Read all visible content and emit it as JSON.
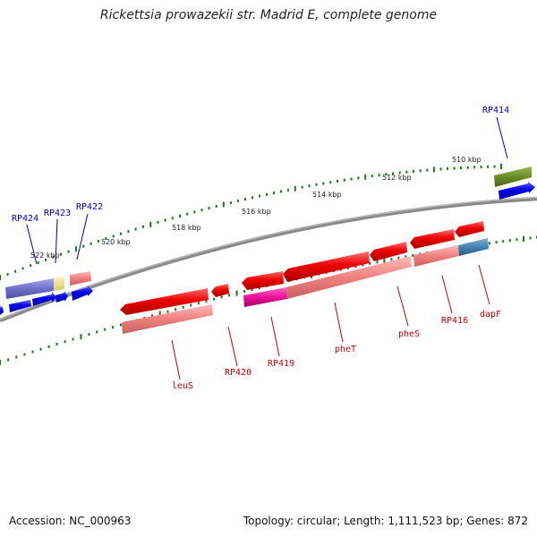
{
  "title": "Rickettsia prowazekii str. Madrid E, complete genome",
  "footer": {
    "accession": "Accession: NC_000963",
    "summary": "Topology: circular; Length: 1,111,523 bp; Genes: 872"
  },
  "colors": {
    "backbone": "#777777",
    "ticks": "#1a7a1a",
    "cds_forward": "#ee1111",
    "cds_reverse": "#0000ee",
    "gene_forward": "#f58a8a",
    "olive": "#6b8e23",
    "steel_blue": "#4682b4",
    "magenta": "#ee1199",
    "purple": "#7070cc",
    "khaki": "#eee08a"
  },
  "scale": {
    "ticks": [
      {
        "label": "522 kbp"
      },
      {
        "label": "520 kbp"
      },
      {
        "label": "518 kbp"
      },
      {
        "label": "516 kbp"
      },
      {
        "label": "514 kbp"
      },
      {
        "label": "512 kbp"
      },
      {
        "label": "510 kbp"
      }
    ]
  },
  "genes": {
    "top_labels": [
      {
        "name": "RP424"
      },
      {
        "name": "RP423"
      },
      {
        "name": "RP422"
      },
      {
        "name": "RP414"
      }
    ],
    "bottom_labels": [
      {
        "name": "leuS"
      },
      {
        "name": "RP420"
      },
      {
        "name": "RP419"
      },
      {
        "name": "pheT"
      },
      {
        "name": "pheS"
      },
      {
        "name": "RP416"
      },
      {
        "name": "dapF"
      }
    ]
  }
}
